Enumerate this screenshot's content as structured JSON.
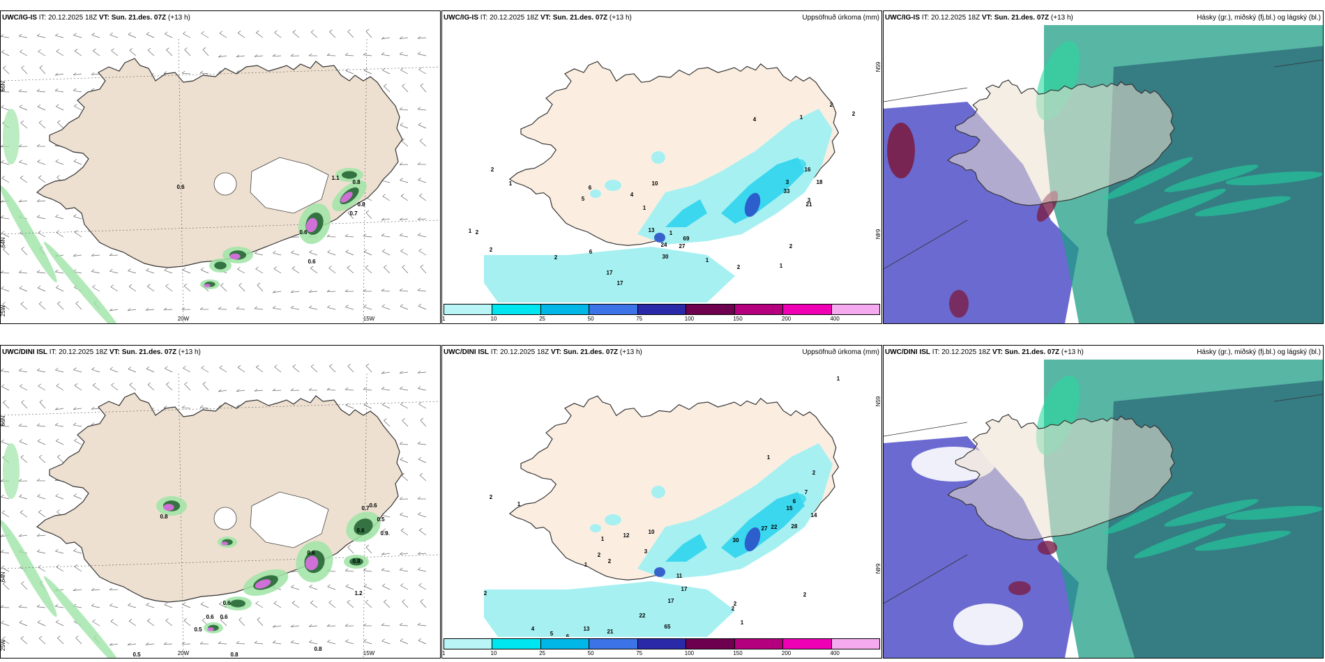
{
  "panels": [
    {
      "id": "top-left",
      "model": "UWC/IG-IS",
      "it_label": "IT:",
      "it_value": "20.12.2025 18Z",
      "vt_label": "VT:",
      "vt_value": "Sun. 21.des. 07Z",
      "lead": "(+13 h)",
      "right_title": "",
      "lat_labels": [
        "66N",
        "64N"
      ],
      "lon_labels": [
        "25W",
        "20W",
        "15W"
      ],
      "values": [
        "0.6",
        "0.8",
        "0.7",
        "0.6",
        "1.1",
        "0.8",
        "0.6"
      ]
    },
    {
      "id": "top-mid",
      "model": "UWC/IG-IS",
      "it_label": "IT:",
      "it_value": "20.12.2025 18Z",
      "vt_label": "VT:",
      "vt_value": "Sun. 21.des. 07Z",
      "lead": "(+13 h)",
      "right_title": "Uppsöfnuð úrkoma (mm)",
      "lat_labels": [
        "65N",
        "64N"
      ],
      "values": [
        "2",
        "1",
        "6",
        "5",
        "10",
        "4",
        "1",
        "1",
        "2",
        "2",
        "1",
        "2",
        "6",
        "13",
        "30",
        "24",
        "17",
        "17",
        "69",
        "27",
        "3",
        "33",
        "21",
        "2",
        "1",
        "4",
        "18",
        "16",
        "2",
        "3",
        "2",
        "1",
        "5",
        "2",
        "1"
      ]
    },
    {
      "id": "top-right",
      "model": "UWC/IG-IS",
      "it_label": "IT:",
      "it_value": "20.12.2025 18Z",
      "vt_label": "VT:",
      "vt_value": "Sun. 21.des. 07Z",
      "lead": "(+13 h)",
      "right_title": "Hásky (gr.), miðský (fj.bl.) og lágský (bl.)"
    },
    {
      "id": "bot-left",
      "model": "UWC/DINI ISL",
      "it_label": "IT:",
      "it_value": "20.12.2025 18Z",
      "vt_label": "VT:",
      "vt_value": "Sun. 21.des. 07Z",
      "lead": "(+13 h)",
      "right_title": "",
      "lat_labels": [
        "66N",
        "64N"
      ],
      "lon_labels": [
        "25W",
        "20W",
        "15W"
      ],
      "values": [
        "0.8",
        "0.6",
        "0.6",
        "0.5",
        "0.7",
        "0.6",
        "0.5",
        "0.9",
        "0.6",
        "0.8",
        "1.2",
        "0.5",
        "0.8",
        "0.8",
        "0.6",
        "0.6"
      ]
    },
    {
      "id": "bot-mid",
      "model": "UWC/DINI ISL",
      "it_label": "IT:",
      "it_value": "20.12.2025 18Z",
      "vt_label": "VT:",
      "vt_value": "Sun. 21.des. 07Z",
      "lead": "(+13 h)",
      "right_title": "Uppsöfnuð úrkoma (mm)",
      "lat_labels": [
        "65N",
        "64N"
      ],
      "values": [
        "2",
        "1",
        "1",
        "12",
        "10",
        "3",
        "2",
        "1",
        "2",
        "2",
        "11",
        "17",
        "17",
        "22",
        "13",
        "21",
        "65",
        "30",
        "27",
        "22",
        "28",
        "14",
        "15",
        "6",
        "7",
        "2",
        "1",
        "2",
        "2",
        "1",
        "2",
        "4",
        "5",
        "6",
        "1"
      ]
    },
    {
      "id": "bot-right",
      "model": "UWC/DINI ISL",
      "it_label": "IT:",
      "it_value": "20.12.2025 18Z",
      "vt_label": "VT:",
      "vt_value": "Sun. 21.des. 07Z",
      "lead": "(+13 h)",
      "right_title": "Hásky (gr.), miðský (fj.bl.) og lágský (bl.)"
    }
  ],
  "colorbar": {
    "labels": [
      "1",
      "10",
      "25",
      "50",
      "75",
      "100",
      "150",
      "200",
      "400"
    ],
    "colors": [
      "#b9f4f6",
      "#00e6f0",
      "#00b7e8",
      "#3c73e6",
      "#2a2aa8",
      "#6e0050",
      "#b4007e",
      "#f000b4",
      "#f5aaf0"
    ]
  },
  "colors": {
    "land": "#ede0d0",
    "land_light": "#fbeee1",
    "precip_light": "#a6f0f2",
    "precip_mid": "#3ad7ee",
    "precip_dark": "#2b52c8",
    "wind_green": "#9fe4a6",
    "wind_dark": "#1e5e2e",
    "wind_pink": "#e070e8",
    "cloud_high": "#1f9e86",
    "cloud_mid": "#2e6e7a",
    "cloud_low": "#5050c8",
    "cloud_red": "#7a1e46"
  }
}
